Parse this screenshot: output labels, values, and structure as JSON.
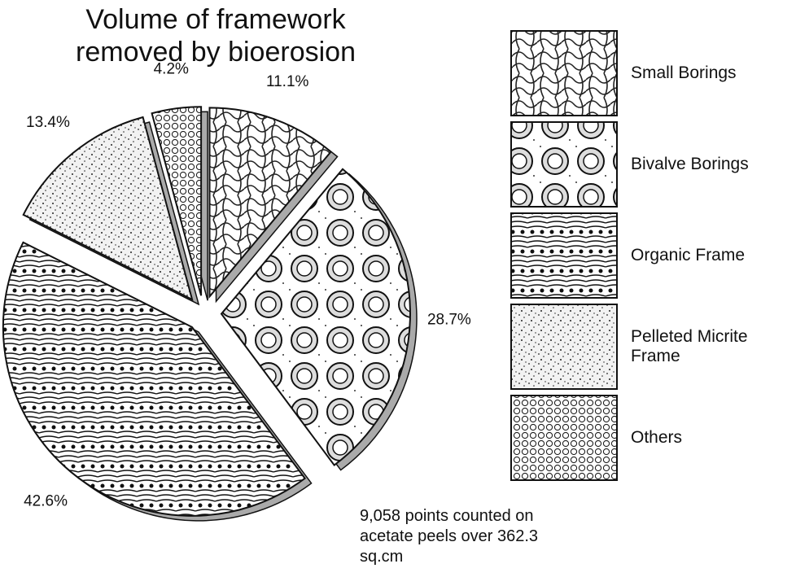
{
  "chart_data": {
    "type": "pie",
    "title": "Volume of framework removed by bioerosion",
    "categories": [
      "Small Borings",
      "Bivalve Borings",
      "Organic Frame",
      "Pelleted Micrite Frame",
      "Others"
    ],
    "values": [
      11.1,
      28.7,
      42.6,
      13.4,
      4.2
    ],
    "value_labels": [
      "11.1%",
      "28.7%",
      "42.6%",
      "13.4%",
      "4.2%"
    ],
    "annotation": "9,058 points counted on acetate peels over 362.3 sq.cm"
  }
}
